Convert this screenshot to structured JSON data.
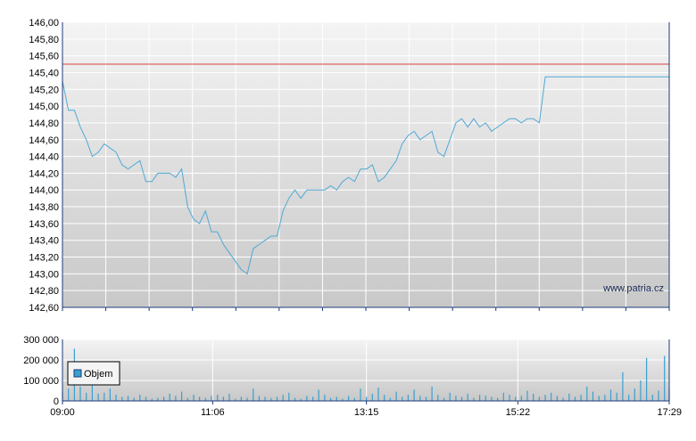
{
  "watermark": "www.patria.cz",
  "colors": {
    "price_line": "#4fa9d6",
    "reference_line": "#d94040",
    "volume_bar": "#3a9fd0",
    "grid": "#ffffff",
    "axis": "#1a3a7a",
    "panel_top": "#f4f4f4",
    "panel_bottom": "#c8c8c8"
  },
  "chart_data": [
    {
      "type": "line",
      "panel": "price",
      "xlabel": "",
      "ylabel": "",
      "x_range": [
        "09:00",
        "17:29"
      ],
      "ylim": [
        142.6,
        146.0
      ],
      "yticks": [
        "146,00",
        "145,80",
        "145,60",
        "145,40",
        "145,20",
        "145,00",
        "144,80",
        "144,60",
        "144,40",
        "144,20",
        "144,00",
        "143,80",
        "143,60",
        "143,40",
        "143,20",
        "143,00",
        "142,80",
        "142,60"
      ],
      "reference_value": 145.5,
      "grid": true,
      "series": [
        {
          "x": [
            "09:00",
            "09:05",
            "09:10",
            "09:15",
            "09:20",
            "09:25",
            "09:30",
            "09:35",
            "09:40",
            "09:45",
            "09:50",
            "09:55",
            "10:00",
            "10:05",
            "10:10",
            "10:15",
            "10:20",
            "10:25",
            "10:30",
            "10:35",
            "10:40",
            "10:45",
            "10:50",
            "10:55",
            "11:00",
            "11:05",
            "11:10",
            "11:15",
            "11:20",
            "11:25",
            "11:30",
            "11:35",
            "11:40",
            "11:45",
            "11:50",
            "11:55",
            "12:00",
            "12:05",
            "12:10",
            "12:15",
            "12:20",
            "12:25",
            "12:30",
            "12:35",
            "12:40",
            "12:45",
            "12:50",
            "12:55",
            "13:00",
            "13:05",
            "13:10",
            "13:15",
            "13:20",
            "13:25",
            "13:30",
            "13:35",
            "13:40",
            "13:45",
            "13:50",
            "13:55",
            "14:00",
            "14:05",
            "14:10",
            "14:15",
            "14:20",
            "14:25",
            "14:30",
            "14:35",
            "14:40",
            "14:45",
            "14:50",
            "14:55",
            "15:00",
            "15:05",
            "15:10",
            "15:15",
            "15:20",
            "15:25",
            "15:30",
            "15:35",
            "15:40",
            "15:45",
            "15:50",
            "15:55",
            "16:00",
            "16:05",
            "16:10",
            "16:15",
            "16:20",
            "16:25",
            "16:30",
            "16:35",
            "16:40",
            "16:45",
            "16:50",
            "16:55",
            "17:00",
            "17:05",
            "17:10",
            "17:15",
            "17:20",
            "17:25",
            "17:29"
          ],
          "values": [
            145.3,
            144.95,
            144.95,
            144.75,
            144.6,
            144.4,
            144.45,
            144.55,
            144.5,
            144.45,
            144.3,
            144.25,
            144.3,
            144.35,
            144.1,
            144.1,
            144.2,
            144.2,
            144.2,
            144.15,
            144.25,
            143.8,
            143.65,
            143.6,
            143.75,
            143.5,
            143.5,
            143.35,
            143.25,
            143.15,
            143.05,
            143.0,
            143.3,
            143.35,
            143.4,
            143.45,
            143.45,
            143.75,
            143.9,
            144.0,
            143.9,
            144.0,
            144.0,
            144.0,
            144.0,
            144.05,
            144.0,
            144.1,
            144.15,
            144.1,
            144.25,
            144.25,
            144.3,
            144.1,
            144.15,
            144.25,
            144.35,
            144.55,
            144.65,
            144.7,
            144.6,
            144.65,
            144.7,
            144.45,
            144.4,
            144.6,
            144.8,
            144.85,
            144.75,
            144.85,
            144.75,
            144.8,
            144.7,
            144.75,
            144.8,
            144.85,
            144.85,
            144.8,
            144.85,
            144.85,
            144.8,
            145.35,
            145.35,
            145.35,
            145.35,
            145.35,
            145.35,
            145.35,
            145.35,
            145.35,
            145.35,
            145.35,
            145.35,
            145.35,
            145.35,
            145.35,
            145.35,
            145.35,
            145.35,
            145.35,
            145.35,
            145.35,
            145.35
          ]
        }
      ]
    },
    {
      "type": "bar",
      "panel": "volume",
      "xlabel": "",
      "ylabel": "",
      "ylim": [
        0,
        300000
      ],
      "yticks": [
        "300 000",
        "200 000",
        "100 000",
        "0"
      ],
      "xticks": [
        "09:00",
        "11:06",
        "13:15",
        "15:22",
        "17:29"
      ],
      "legend": {
        "entries": [
          "Objem"
        ],
        "placement": "top-left"
      },
      "grid": true,
      "series": [
        {
          "name": "Objem",
          "x": [
            "09:00",
            "09:05",
            "09:10",
            "09:15",
            "09:20",
            "09:25",
            "09:30",
            "09:35",
            "09:40",
            "09:45",
            "09:50",
            "09:55",
            "10:00",
            "10:05",
            "10:10",
            "10:15",
            "10:20",
            "10:25",
            "10:30",
            "10:35",
            "10:40",
            "10:45",
            "10:50",
            "10:55",
            "11:00",
            "11:05",
            "11:10",
            "11:15",
            "11:20",
            "11:25",
            "11:30",
            "11:35",
            "11:40",
            "11:45",
            "11:50",
            "11:55",
            "12:00",
            "12:05",
            "12:10",
            "12:15",
            "12:20",
            "12:25",
            "12:30",
            "12:35",
            "12:40",
            "12:45",
            "12:50",
            "12:55",
            "13:00",
            "13:05",
            "13:10",
            "13:15",
            "13:20",
            "13:25",
            "13:30",
            "13:35",
            "13:40",
            "13:45",
            "13:50",
            "13:55",
            "14:00",
            "14:05",
            "14:10",
            "14:15",
            "14:20",
            "14:25",
            "14:30",
            "14:35",
            "14:40",
            "14:45",
            "14:50",
            "14:55",
            "15:00",
            "15:05",
            "15:10",
            "15:15",
            "15:20",
            "15:25",
            "15:30",
            "15:35",
            "15:40",
            "15:45",
            "15:50",
            "15:55",
            "16:00",
            "16:05",
            "16:10",
            "16:15",
            "16:20",
            "16:25",
            "16:30",
            "16:35",
            "16:40",
            "16:45",
            "16:50",
            "16:55",
            "17:00",
            "17:05",
            "17:10",
            "17:15",
            "17:20",
            "17:25",
            "17:29"
          ],
          "values": [
            45000,
            60000,
            255000,
            70000,
            40000,
            110000,
            35000,
            40000,
            60000,
            30000,
            20000,
            25000,
            15000,
            30000,
            20000,
            10000,
            15000,
            20000,
            35000,
            25000,
            45000,
            15000,
            30000,
            20000,
            15000,
            25000,
            30000,
            20000,
            35000,
            10000,
            20000,
            15000,
            60000,
            25000,
            20000,
            15000,
            20000,
            30000,
            40000,
            15000,
            10000,
            25000,
            20000,
            55000,
            30000,
            15000,
            20000,
            10000,
            25000,
            15000,
            60000,
            20000,
            35000,
            65000,
            30000,
            15000,
            45000,
            20000,
            30000,
            55000,
            25000,
            20000,
            70000,
            30000,
            15000,
            40000,
            25000,
            20000,
            35000,
            15000,
            30000,
            25000,
            20000,
            15000,
            40000,
            30000,
            20000,
            25000,
            50000,
            35000,
            20000,
            30000,
            40000,
            25000,
            15000,
            35000,
            20000,
            30000,
            70000,
            45000,
            25000,
            30000,
            55000,
            40000,
            140000,
            30000,
            60000,
            100000,
            210000,
            30000,
            50000,
            220000,
            60000
          ]
        }
      ]
    }
  ]
}
